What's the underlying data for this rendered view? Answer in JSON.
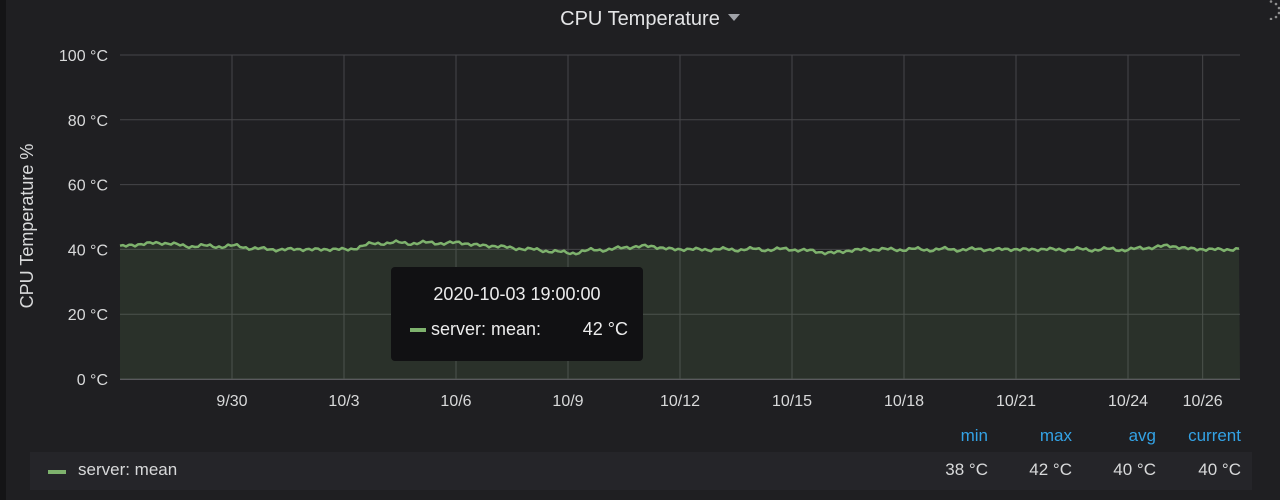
{
  "panel": {
    "title": "CPU Temperature"
  },
  "colors": {
    "series": "#7eb26d",
    "legend_header": "#33a2e5",
    "grid": "#464649",
    "background": "#1f1f22"
  },
  "chart_data": {
    "type": "area",
    "ylabel": "CPU Temperature %",
    "xlabel": "",
    "y_unit": "°C",
    "ylim": [
      0,
      100
    ],
    "y_ticks": [
      "0 °C",
      "20 °C",
      "40 °C",
      "60 °C",
      "80 °C",
      "100 °C"
    ],
    "x_ticks": [
      "9/30",
      "10/3",
      "10/6",
      "10/9",
      "10/12",
      "10/15",
      "10/18",
      "10/21",
      "10/24",
      "10/26"
    ],
    "xlim": [
      "2020-09-27",
      "2020-10-27"
    ],
    "grid": true,
    "series": [
      {
        "name": "server: mean",
        "x": [
          "2020-09-27",
          "2020-09-28",
          "2020-09-29",
          "2020-09-30",
          "2020-10-01",
          "2020-10-02",
          "2020-10-03",
          "2020-10-04",
          "2020-10-05",
          "2020-10-06",
          "2020-10-07",
          "2020-10-08",
          "2020-10-09",
          "2020-10-10",
          "2020-10-11",
          "2020-10-12",
          "2020-10-13",
          "2020-10-14",
          "2020-10-15",
          "2020-10-16",
          "2020-10-17",
          "2020-10-18",
          "2020-10-19",
          "2020-10-20",
          "2020-10-21",
          "2020-10-22",
          "2020-10-23",
          "2020-10-24",
          "2020-10-25",
          "2020-10-26",
          "2020-10-27"
        ],
        "values": [
          41,
          42,
          41,
          41,
          40,
          40,
          40,
          42,
          42,
          42,
          41,
          40,
          39,
          40,
          41,
          40,
          40,
          40,
          40,
          39,
          40,
          40,
          40,
          40,
          40,
          40,
          40,
          40,
          41,
          40,
          40
        ]
      }
    ],
    "tooltip": {
      "time": "2020-10-03 19:00:00",
      "series": "server: mean:",
      "value": "42 °C"
    }
  },
  "legend": {
    "headers": {
      "min": "min",
      "max": "max",
      "avg": "avg",
      "current": "current"
    },
    "rows": [
      {
        "name": "server: mean",
        "min": "38 °C",
        "max": "42 °C",
        "avg": "40 °C",
        "current": "40 °C"
      }
    ]
  }
}
